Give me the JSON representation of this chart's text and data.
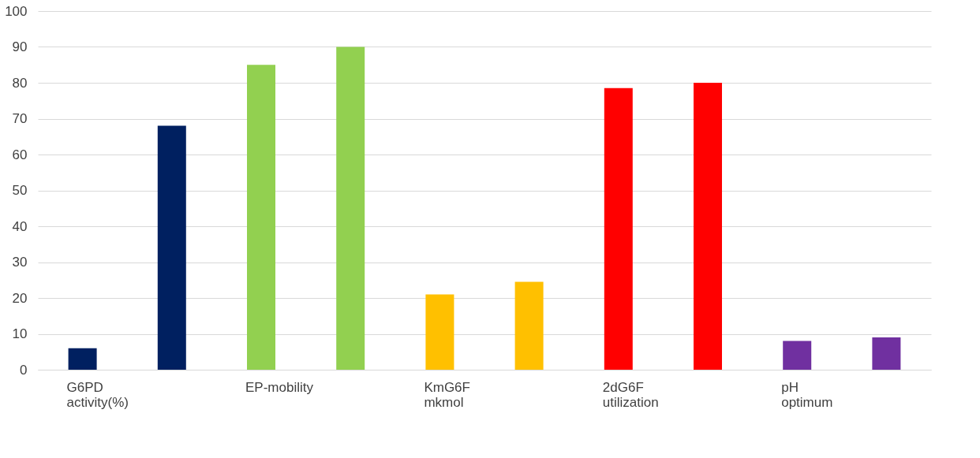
{
  "chart_data": {
    "type": "bar",
    "categories": [
      "G6PD activity(%)",
      null,
      "EP-mobility",
      null,
      "KmG6F mkmol",
      null,
      "2dG6F utilization",
      null,
      "pH optimum",
      null
    ],
    "values": [
      6,
      68,
      85,
      90,
      21,
      24.5,
      78.5,
      80,
      8,
      9
    ],
    "colors": [
      "#002060",
      "#002060",
      "#92d050",
      "#92d050",
      "#ffc000",
      "#ffc000",
      "#ff0000",
      "#ff0000",
      "#7030a0",
      "#7030a0"
    ],
    "ylim": [
      0,
      100
    ],
    "yticks": [
      0,
      10,
      20,
      30,
      40,
      50,
      60,
      70,
      80,
      90,
      100
    ],
    "grid": "y",
    "legend": false
  }
}
